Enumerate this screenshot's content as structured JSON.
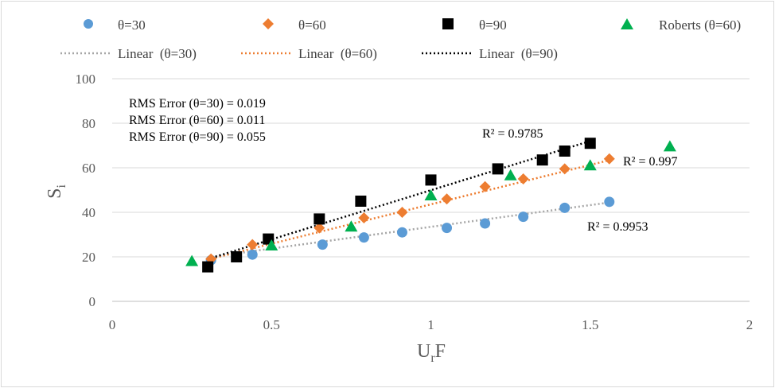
{
  "chart_data": {
    "type": "scatter",
    "xlabel": "U",
    "xlabel_sub": "r",
    "xlabel_tail": "F",
    "ylabel": "S",
    "ylabel_sub": "i",
    "xlim": [
      0,
      2
    ],
    "ylim": [
      0,
      100
    ],
    "x_ticks": [
      0,
      0.5,
      1,
      1.5,
      2
    ],
    "x_tick_labels": [
      "0",
      "0.5",
      "1",
      "1.5",
      "2"
    ],
    "y_ticks": [
      0,
      20,
      40,
      60,
      80,
      100
    ],
    "y_tick_labels": [
      "0",
      "20",
      "40",
      "60",
      "80",
      "100"
    ],
    "grid": "horizontal",
    "legend_placement": "top",
    "series": [
      {
        "name": "θ=30",
        "marker": "circle",
        "color": "#5B9BD5",
        "x": [
          0.31,
          0.44,
          0.66,
          0.79,
          0.91,
          1.05,
          1.17,
          1.29,
          1.42,
          1.56
        ],
        "y": [
          18.5,
          21,
          25.5,
          28.7,
          31,
          33,
          35,
          38,
          42,
          44.7
        ]
      },
      {
        "name": "θ=60",
        "marker": "diamond",
        "color": "#ED7D31",
        "x": [
          0.31,
          0.44,
          0.65,
          0.79,
          0.91,
          1.05,
          1.17,
          1.29,
          1.42,
          1.56
        ],
        "y": [
          19,
          25.5,
          33,
          37.5,
          40,
          46,
          51.5,
          55,
          59.5,
          64
        ]
      },
      {
        "name": "θ=90",
        "marker": "square",
        "color": "#000000",
        "x": [
          0.3,
          0.39,
          0.49,
          0.65,
          0.78,
          1.0,
          1.21,
          1.35,
          1.42,
          1.5
        ],
        "y": [
          15.5,
          20,
          28,
          37,
          45,
          54.5,
          59.5,
          63.5,
          67.5,
          71
        ]
      },
      {
        "name": "Roberts (θ=60)",
        "marker": "triangle",
        "color": "#00B050",
        "x": [
          0.25,
          0.5,
          0.75,
          1.0,
          1.25,
          1.5,
          1.75
        ],
        "y": [
          18,
          25,
          33.5,
          47.5,
          56.5,
          61,
          69.5
        ]
      }
    ],
    "trendlines": [
      {
        "name": "Linear  (θ=30)",
        "color": "#A6A6A6",
        "x": [
          0.3,
          1.56
        ],
        "y": [
          19.8,
          44.4
        ]
      },
      {
        "name": "Linear  (θ=60)",
        "color": "#ED7D31",
        "x": [
          0.3,
          1.56
        ],
        "y": [
          18.8,
          63.4
        ]
      },
      {
        "name": "Linear  (θ=90)",
        "color": "#000000",
        "x": [
          0.3,
          1.5
        ],
        "y": [
          19,
          72
        ]
      }
    ],
    "r2_labels": [
      {
        "text": "R² = 0.9785"
      },
      {
        "text": "R² = 0.997"
      },
      {
        "text": "R² = 0.9953"
      }
    ],
    "annotations": [
      "RMS Error (θ=30) = 0.019",
      "RMS Error (θ=60) = 0.011",
      "RMS Error (θ=90) = 0.055"
    ]
  }
}
